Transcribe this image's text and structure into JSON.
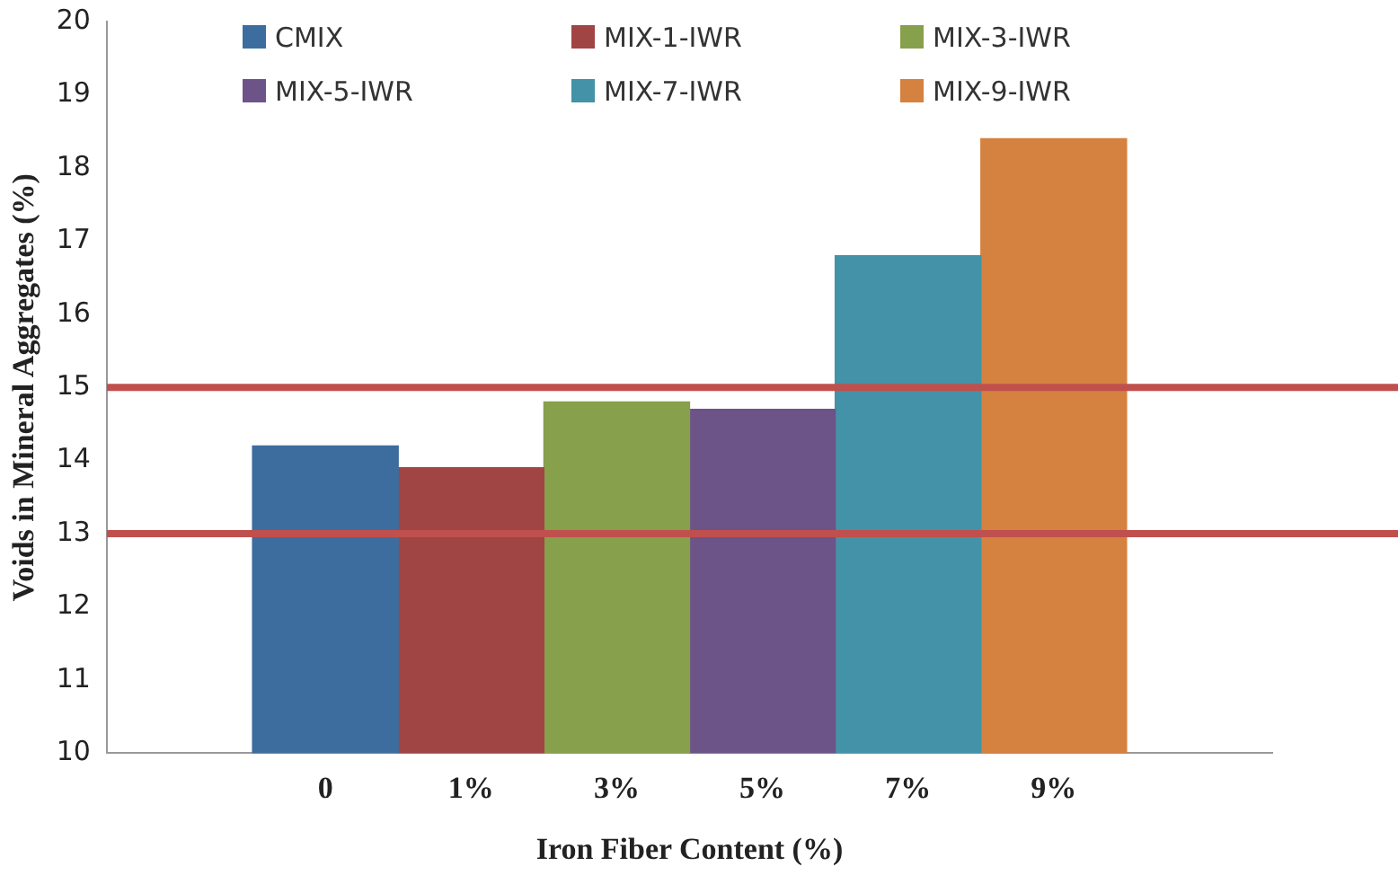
{
  "chart_data": {
    "type": "bar",
    "stacked": true,
    "xlabel": "Iron Fiber Content (%)",
    "ylabel": "Voids in Mineral Aggregates (%)",
    "categories": [
      "0",
      "1%",
      "3%",
      "5%",
      "7%",
      "9%"
    ],
    "series": [
      {
        "name": "CMIX",
        "color": "#3d6d9e",
        "values": [
          14.2,
          null,
          null,
          null,
          null,
          null
        ]
      },
      {
        "name": "MIX-1-IWR",
        "color": "#a04544",
        "values": [
          null,
          13.9,
          null,
          null,
          null,
          null
        ]
      },
      {
        "name": "MIX-3-IWR",
        "color": "#87a04c",
        "values": [
          null,
          null,
          14.8,
          null,
          null,
          null
        ]
      },
      {
        "name": "MIX-5-IWR",
        "color": "#6c5488",
        "values": [
          null,
          null,
          null,
          14.7,
          null,
          null
        ]
      },
      {
        "name": "MIX-7-IWR",
        "color": "#4392a8",
        "values": [
          null,
          null,
          null,
          null,
          16.8,
          null
        ]
      },
      {
        "name": "MIX-9-IWR",
        "color": "#d58140",
        "values": [
          null,
          null,
          null,
          null,
          null,
          18.4
        ]
      }
    ],
    "ylim": [
      10,
      20
    ],
    "yticks": [
      10,
      11,
      12,
      13,
      14,
      15,
      16,
      17,
      18,
      19,
      20
    ],
    "grid": false,
    "legend": "top",
    "ref_lines": [
      {
        "axis": "y",
        "value": 15,
        "color": "#c0504d"
      },
      {
        "axis": "y",
        "value": 13,
        "color": "#c0504d"
      }
    ]
  }
}
